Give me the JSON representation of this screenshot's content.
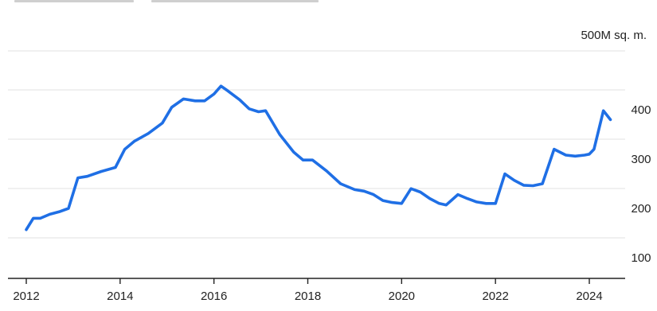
{
  "chart_data": {
    "type": "line",
    "title": "",
    "xlabel": "",
    "ylabel": "",
    "y_unit_label": "500M sq. m.",
    "grid": true,
    "legend": "none",
    "line_color": "#1f6fe5",
    "xlim": [
      2012,
      2024.6
    ],
    "ylim": [
      80,
      510
    ],
    "x_ticks": [
      {
        "value": 2012,
        "label": "2012"
      },
      {
        "value": 2014,
        "label": "2014"
      },
      {
        "value": 2016,
        "label": "2016"
      },
      {
        "value": 2018,
        "label": "2018"
      },
      {
        "value": 2020,
        "label": "2020"
      },
      {
        "value": 2022,
        "label": "2022"
      },
      {
        "value": 2024,
        "label": "2024"
      }
    ],
    "y_ticks": [
      {
        "value": 100,
        "label": "100"
      },
      {
        "value": 200,
        "label": "200"
      },
      {
        "value": 300,
        "label": "300"
      },
      {
        "value": 400,
        "label": "400"
      }
    ],
    "series": [
      {
        "values": [
          [
            2012.0,
            157
          ],
          [
            2012.15,
            180
          ],
          [
            2012.3,
            180
          ],
          [
            2012.5,
            188
          ],
          [
            2012.7,
            193
          ],
          [
            2012.9,
            200
          ],
          [
            2013.1,
            262
          ],
          [
            2013.3,
            265
          ],
          [
            2013.6,
            275
          ],
          [
            2013.9,
            283
          ],
          [
            2014.1,
            320
          ],
          [
            2014.3,
            336
          ],
          [
            2014.6,
            352
          ],
          [
            2014.9,
            373
          ],
          [
            2015.1,
            405
          ],
          [
            2015.35,
            422
          ],
          [
            2015.6,
            418
          ],
          [
            2015.8,
            418
          ],
          [
            2016.0,
            432
          ],
          [
            2016.15,
            448
          ],
          [
            2016.3,
            438
          ],
          [
            2016.55,
            420
          ],
          [
            2016.75,
            402
          ],
          [
            2016.95,
            396
          ],
          [
            2017.1,
            398
          ],
          [
            2017.4,
            350
          ],
          [
            2017.7,
            314
          ],
          [
            2017.9,
            298
          ],
          [
            2018.1,
            298
          ],
          [
            2018.4,
            276
          ],
          [
            2018.7,
            250
          ],
          [
            2019.0,
            238
          ],
          [
            2019.2,
            235
          ],
          [
            2019.4,
            228
          ],
          [
            2019.6,
            216
          ],
          [
            2019.8,
            212
          ],
          [
            2020.0,
            210
          ],
          [
            2020.2,
            240
          ],
          [
            2020.4,
            233
          ],
          [
            2020.6,
            220
          ],
          [
            2020.8,
            210
          ],
          [
            2020.95,
            207
          ],
          [
            2021.2,
            228
          ],
          [
            2021.4,
            220
          ],
          [
            2021.6,
            213
          ],
          [
            2021.8,
            210
          ],
          [
            2022.0,
            210
          ],
          [
            2022.2,
            270
          ],
          [
            2022.4,
            257
          ],
          [
            2022.6,
            247
          ],
          [
            2022.8,
            246
          ],
          [
            2023.0,
            250
          ],
          [
            2023.25,
            320
          ],
          [
            2023.5,
            308
          ],
          [
            2023.7,
            306
          ],
          [
            2023.9,
            308
          ],
          [
            2024.0,
            310
          ],
          [
            2024.1,
            320
          ],
          [
            2024.3,
            398
          ],
          [
            2024.45,
            380
          ]
        ]
      }
    ]
  }
}
